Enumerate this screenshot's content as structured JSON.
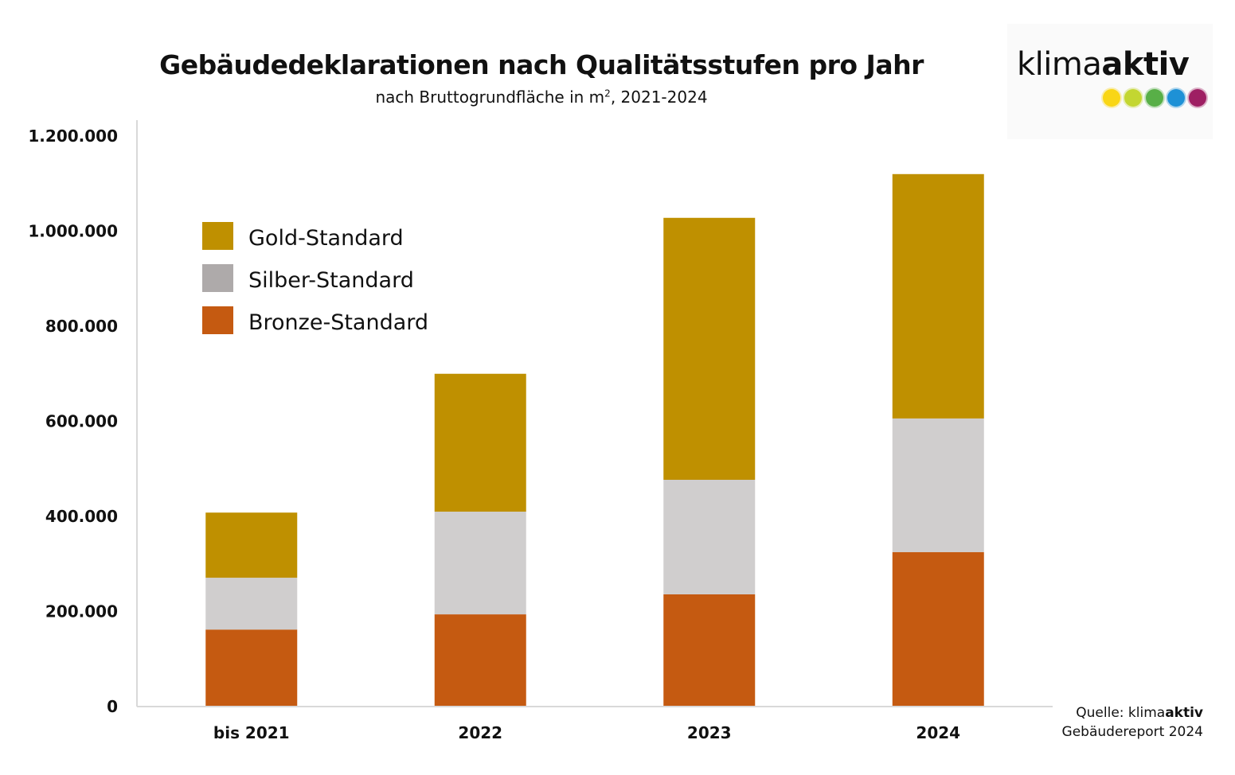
{
  "chart_data": {
    "type": "bar",
    "stacked": true,
    "title": "Gebäudedeklarationen nach Qualitätsstufen pro Jahr",
    "subtitle_prefix": "nach Bruttogrundfläche in m",
    "subtitle_sup": "2",
    "subtitle_suffix": ", 2021-2024",
    "xlabel": "",
    "ylabel": "",
    "ylim": [
      0,
      1200000
    ],
    "yticks": [
      0,
      200000,
      400000,
      600000,
      800000,
      1000000,
      1200000
    ],
    "ytick_labels": [
      "0",
      "200.000",
      "400.000",
      "600.000",
      "800.000",
      "1.000.000",
      "1.200.000"
    ],
    "grid": false,
    "legend_position": "top-left",
    "categories": [
      "bis 2021",
      "2022",
      "2023",
      "2024"
    ],
    "series": [
      {
        "name": "Bronze-Standard",
        "color": "#C55A11",
        "values": [
          162000,
          194000,
          236000,
          325000
        ]
      },
      {
        "name": "Silber-Standard",
        "color": "#D0CECE",
        "values": [
          109000,
          216000,
          241000,
          281000
        ]
      },
      {
        "name": "Gold-Standard",
        "color": "#BF9000",
        "values": [
          137000,
          290000,
          551000,
          514000
        ]
      }
    ],
    "legend_order": [
      "Gold-Standard",
      "Silber-Standard",
      "Bronze-Standard"
    ],
    "legend_colors": {
      "Gold-Standard": "#BF9000",
      "Silber-Standard": "#AEAAAA",
      "Bronze-Standard": "#C55A11"
    }
  },
  "logo": {
    "text_light": "klima",
    "text_bold": "aktiv",
    "dot_colors": [
      "#F9D616",
      "#C3D631",
      "#58AF47",
      "#1E91D6",
      "#9E1F63"
    ]
  },
  "source": {
    "prefix": "Quelle: klima",
    "bold": "aktiv",
    "line2": "Gebäudereport 2024"
  }
}
